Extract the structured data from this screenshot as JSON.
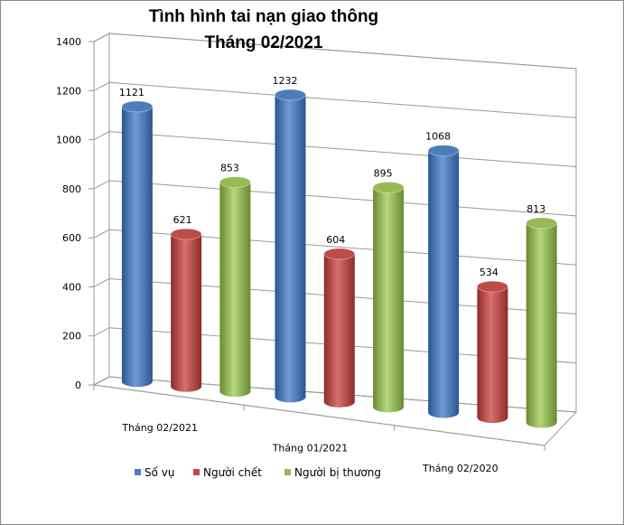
{
  "chart_data": {
    "type": "bar",
    "title": "Tình hình tai nạn giao thông",
    "subtitle": "Tháng 02/2021",
    "categories": [
      "Tháng 02/2021",
      "Tháng 01/2021",
      "Tháng 02/2020"
    ],
    "series": [
      {
        "name": "Số vụ",
        "values": [
          1121,
          1232,
          1068
        ],
        "color": "#4a7ebb"
      },
      {
        "name": "Người chết",
        "values": [
          621,
          604,
          534
        ],
        "color": "#be4b48"
      },
      {
        "name": "Người bị thương",
        "values": [
          853,
          895,
          813
        ],
        "color": "#98b954"
      }
    ],
    "ylim": [
      0,
      1400
    ],
    "yticks": [
      0,
      200,
      400,
      600,
      800,
      1000,
      1200,
      1400
    ],
    "grid": true,
    "legend_position": "bottom",
    "style": "3d-cylinder"
  }
}
